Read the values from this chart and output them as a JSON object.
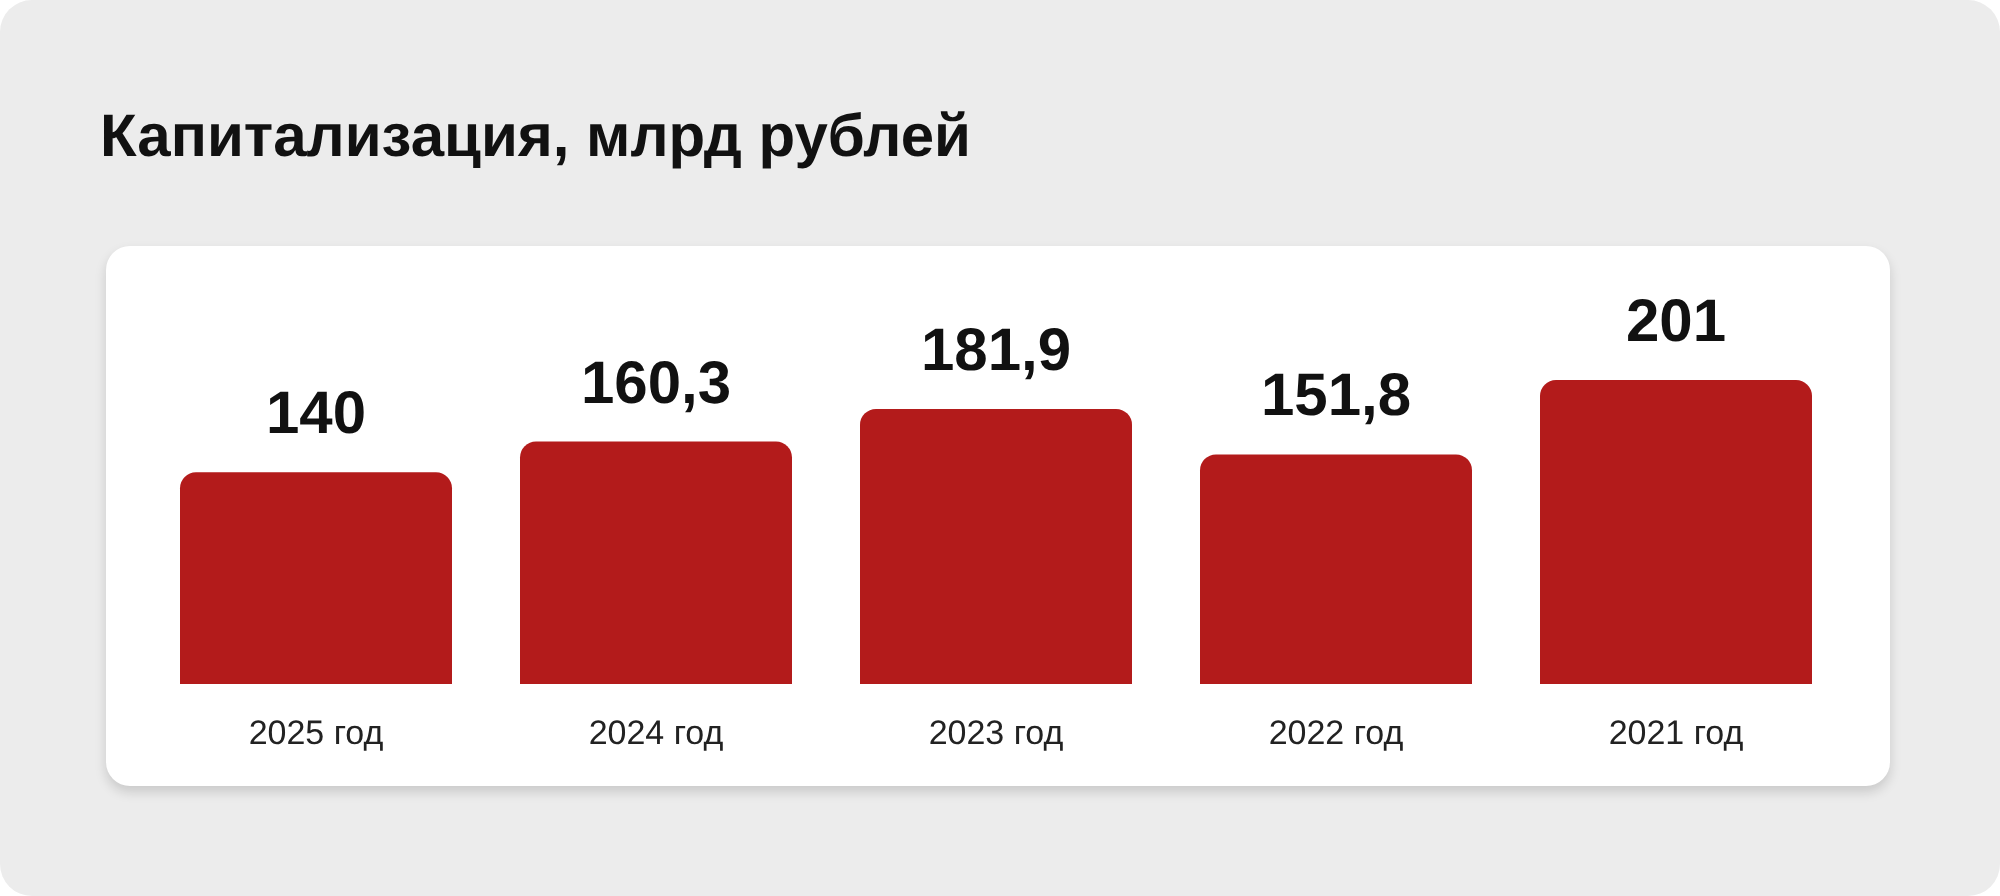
{
  "chart_data": {
    "type": "bar",
    "title": "Капитализация, млрд рублей",
    "categories": [
      "2025 год",
      "2024 год",
      "2023 год",
      "2022 год",
      "2021 год"
    ],
    "values": [
      140,
      160.3,
      181.9,
      151.8,
      201
    ],
    "value_labels": [
      "140",
      "160,3",
      "181,9",
      "151,8",
      "201"
    ],
    "color": "#b31b1b"
  }
}
